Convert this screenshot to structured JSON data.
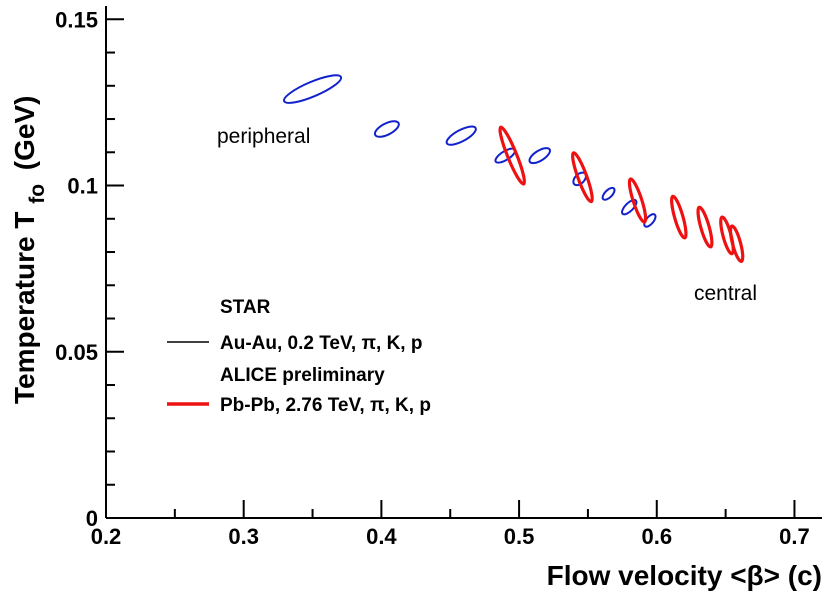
{
  "chart_data": {
    "type": "scatter",
    "title": "",
    "xlabel": "Flow velocity <β> (c)",
    "ylabel_main": "Temperature T",
    "ylabel_sub": "fo",
    "ylabel_unit": "(GeV)",
    "xlim": [
      0.2,
      0.72
    ],
    "ylim": [
      0,
      0.154
    ],
    "xticks": [
      0.2,
      0.3,
      0.4,
      0.5,
      0.6,
      0.7
    ],
    "xtick_labels": [
      "0.2",
      "0.3",
      "0.4",
      "0.5",
      "0.6",
      "0.7"
    ],
    "yticks": [
      0,
      0.05,
      0.1,
      0.15
    ],
    "ytick_labels": [
      "0",
      "0.05",
      "0.1",
      "0.15"
    ],
    "grid": false,
    "annotations": [
      {
        "text": "peripheral",
        "x": 0.315,
        "y": 0.113
      },
      {
        "text": "central",
        "x": 0.68,
        "y": 0.067
      }
    ],
    "legend": {
      "position": "center-left",
      "entries": [
        {
          "header": "STAR",
          "label": "Au-Au, 0.2 TeV,  π, K, p",
          "color": "#000000",
          "line_width": 1
        },
        {
          "header": "ALICE preliminary",
          "label": "Pb-Pb, 2.76 TeV, π, K, p",
          "color": "#ee1111",
          "line_width": 3
        }
      ]
    },
    "series": [
      {
        "name": "STAR Au-Au 0.2 TeV",
        "color": "#1122cc",
        "ellipses": [
          {
            "x": 0.35,
            "y": 0.129,
            "dx": 0.0224,
            "dy": 0.0022,
            "angle": -23
          },
          {
            "x": 0.404,
            "y": 0.117,
            "dx": 0.0095,
            "dy": 0.0017,
            "angle": -27
          },
          {
            "x": 0.458,
            "y": 0.115,
            "dx": 0.0118,
            "dy": 0.0017,
            "angle": -28
          },
          {
            "x": 0.49,
            "y": 0.109,
            "dx": 0.0082,
            "dy": 0.0013,
            "angle": -32
          },
          {
            "x": 0.515,
            "y": 0.109,
            "dx": 0.0085,
            "dy": 0.0015,
            "angle": -32
          },
          {
            "x": 0.544,
            "y": 0.102,
            "dx": 0.0055,
            "dy": 0.0014,
            "angle": -45
          },
          {
            "x": 0.565,
            "y": 0.0975,
            "dx": 0.0055,
            "dy": 0.0011,
            "angle": -45
          },
          {
            "x": 0.58,
            "y": 0.0935,
            "dx": 0.0068,
            "dy": 0.0012,
            "angle": -45
          },
          {
            "x": 0.595,
            "y": 0.0895,
            "dx": 0.0055,
            "dy": 0.0011,
            "angle": -50
          }
        ]
      },
      {
        "name": "ALICE preliminary Pb-Pb 2.76 TeV",
        "color": "#ee1111",
        "ellipses": [
          {
            "x": 0.495,
            "y": 0.109,
            "dx": 0.0033,
            "dy": 0.0092,
            "angle": -22
          },
          {
            "x": 0.546,
            "y": 0.1025,
            "dx": 0.0032,
            "dy": 0.0078,
            "angle": -20
          },
          {
            "x": 0.586,
            "y": 0.0955,
            "dx": 0.0031,
            "dy": 0.0068,
            "angle": -18
          },
          {
            "x": 0.616,
            "y": 0.0905,
            "dx": 0.003,
            "dy": 0.0065,
            "angle": -16
          },
          {
            "x": 0.635,
            "y": 0.0875,
            "dx": 0.003,
            "dy": 0.0062,
            "angle": -16
          },
          {
            "x": 0.651,
            "y": 0.085,
            "dx": 0.0029,
            "dy": 0.0057,
            "angle": -15
          },
          {
            "x": 0.658,
            "y": 0.0825,
            "dx": 0.0029,
            "dy": 0.0055,
            "angle": -15
          }
        ]
      }
    ]
  }
}
